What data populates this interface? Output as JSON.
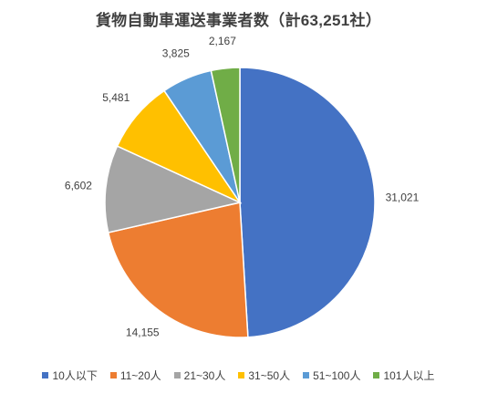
{
  "chart_data": {
    "type": "pie",
    "title": "貨物自動車運送事業者数（計63,251社）",
    "categories": [
      "10人以下",
      "11~20人",
      "21~30人",
      "31~50人",
      "51~100人",
      "101人以上"
    ],
    "values": [
      31021,
      14155,
      6602,
      5481,
      3825,
      2167
    ],
    "data_labels": [
      "31,021",
      "14,155",
      "6,602",
      "5,481",
      "3,825",
      "2,167"
    ],
    "colors": [
      "#4472C4",
      "#ED7D31",
      "#A5A5A5",
      "#FFC000",
      "#5B9BD5",
      "#70AD47"
    ],
    "start_angle": "12 o'clock",
    "direction": "clockwise",
    "legend_position": "bottom"
  }
}
